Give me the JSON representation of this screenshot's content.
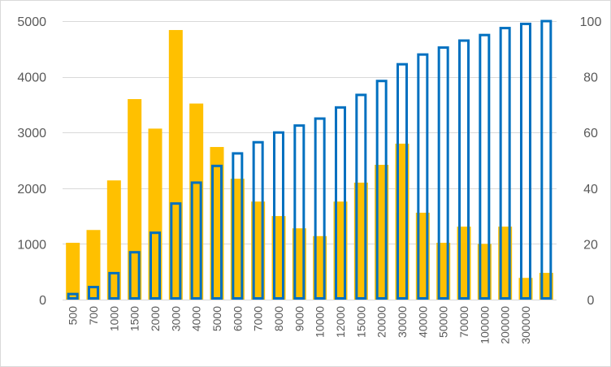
{
  "chart_data": {
    "type": "bar",
    "categories": [
      "500",
      "700",
      "1000",
      "1500",
      "2000",
      "3000",
      "4000",
      "5000",
      "6000",
      "7000",
      "8000",
      "9000",
      "10000",
      "12000",
      "15000",
      "20000",
      "30000",
      "40000",
      "50000",
      "70000",
      "100000",
      "200000",
      "300000",
      ""
    ],
    "series": [
      {
        "axis": "left",
        "style": "filled",
        "color": "#FFC000",
        "values": [
          1020,
          1250,
          2140,
          3600,
          3070,
          4840,
          3520,
          2740,
          2170,
          1760,
          1500,
          1280,
          1140,
          1760,
          2100,
          2420,
          2800,
          1560,
          1020,
          1310,
          1000,
          1310,
          390,
          480
        ]
      },
      {
        "axis": "right",
        "style": "outline",
        "color": "#0070C0",
        "values": [
          2,
          4.5,
          9.5,
          17,
          24,
          34.5,
          42,
          48,
          52.5,
          56.5,
          60,
          62.5,
          65,
          69,
          73.5,
          78.5,
          84.5,
          88,
          90.5,
          93,
          95,
          97.5,
          99,
          100
        ]
      }
    ],
    "yleft": {
      "min": 0,
      "max": 5000,
      "ticks": [
        0,
        1000,
        2000,
        3000,
        4000,
        5000
      ]
    },
    "yright": {
      "min": 0,
      "max": 100,
      "ticks": [
        0,
        20,
        40,
        60,
        80,
        100
      ]
    },
    "grid": true,
    "legend": "none"
  }
}
